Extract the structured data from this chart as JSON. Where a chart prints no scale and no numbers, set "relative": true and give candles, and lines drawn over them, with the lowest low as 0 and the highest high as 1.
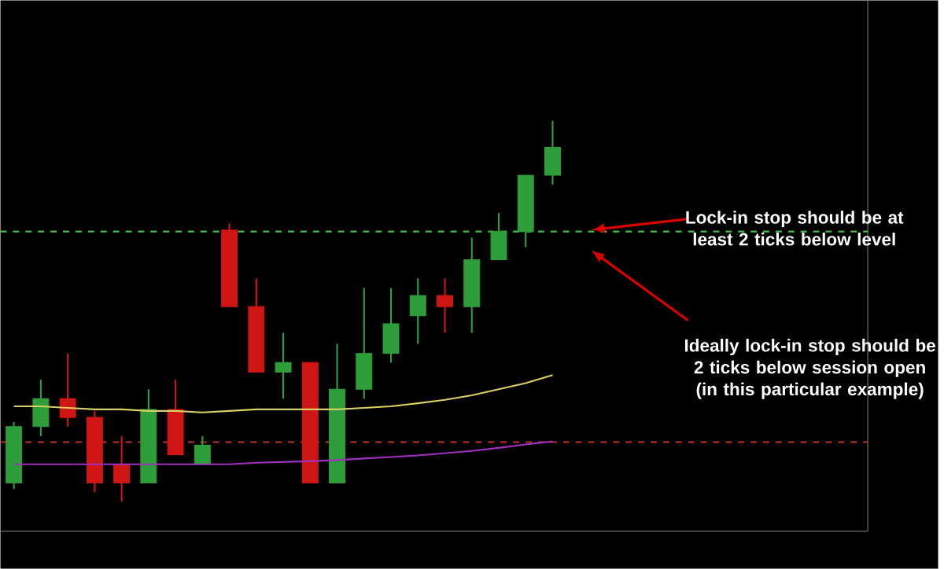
{
  "chart_data": {
    "type": "candlestick",
    "relative": true,
    "categories": [
      null,
      null,
      null,
      null,
      null,
      null,
      null,
      null,
      null,
      null,
      null,
      null,
      null,
      null,
      null,
      null,
      null,
      null,
      null,
      null,
      null
    ],
    "ohlc": [
      [
        0.049,
        0.209,
        0.033,
        0.197
      ],
      [
        0.197,
        0.32,
        0.172,
        0.27
      ],
      [
        0.27,
        0.389,
        0.197,
        0.221
      ],
      [
        0.221,
        0.238,
        0.025,
        0.049
      ],
      [
        0.098,
        0.172,
        0,
        0.049
      ],
      [
        0.049,
        0.295,
        0.049,
        0.242
      ],
      [
        0.242,
        0.32,
        0.123,
        0.123
      ],
      [
        0.098,
        0.172,
        0.098,
        0.148
      ],
      [
        0.713,
        0.73,
        0.512,
        0.512
      ],
      [
        0.512,
        0.586,
        0.34,
        0.34
      ],
      [
        0.34,
        0.443,
        0.27,
        0.365
      ],
      [
        0.365,
        0.365,
        0.049,
        0.049
      ],
      [
        0.049,
        0.414,
        0.049,
        0.295
      ],
      [
        0.295,
        0.561,
        0.27,
        0.389
      ],
      [
        0.389,
        0.561,
        0.365,
        0.467
      ],
      [
        0.488,
        0.586,
        0.414,
        0.541
      ],
      [
        0.541,
        0.586,
        0.443,
        0.512
      ],
      [
        0.512,
        0.693,
        0.443,
        0.635
      ],
      [
        0.635,
        0.758,
        0.635,
        0.709
      ],
      [
        0.709,
        0.857,
        0.668,
        0.857
      ],
      [
        0.857,
        1,
        0.832,
        0.93
      ]
    ],
    "colors": [
      "#2e9e3a",
      "#2e9e3a",
      "#d01515",
      "#d01515",
      "#d01515",
      "#2e9e3a",
      "#d01515",
      "#2e9e3a",
      "#d01515",
      "#d01515",
      "#2e9e3a",
      "#d01515",
      "#2e9e3a",
      "#2e9e3a",
      "#2e9e3a",
      "#2e9e3a",
      "#d01515",
      "#2e9e3a",
      "#2e9e3a",
      "#2e9e3a",
      "#2e9e3a"
    ],
    "series": [
      {
        "type": "line",
        "color": "#d8d060",
        "values": [
          0.25,
          0.25,
          0.246,
          0.242,
          0.242,
          0.238,
          0.238,
          0.234,
          0.238,
          0.242,
          0.242,
          0.242,
          0.242,
          0.246,
          0.25,
          0.258,
          0.267,
          0.279,
          0.295,
          0.311,
          0.332
        ]
      },
      {
        "type": "line",
        "color": "#a030c0",
        "values": [
          0.098,
          0.098,
          0.098,
          0.098,
          0.098,
          0.098,
          0.098,
          0.098,
          0.098,
          0.102,
          0.104,
          0.106,
          0.109,
          0.113,
          0.117,
          0.121,
          0.127,
          0.133,
          0.141,
          0.15,
          0.158
        ]
      }
    ],
    "ref_lines": [
      {
        "axis": "y",
        "value": 0.709,
        "color": "#40c040",
        "line_style": "dashed"
      },
      {
        "axis": "y",
        "value": 0.156,
        "color": "#c03030",
        "line_style": "dashed"
      }
    ],
    "annotations": [
      "Lock-in stop should be at least 2 ticks below level",
      "Ideally lock-in stop should be 2 ticks below session open (in this particular example)"
    ]
  }
}
